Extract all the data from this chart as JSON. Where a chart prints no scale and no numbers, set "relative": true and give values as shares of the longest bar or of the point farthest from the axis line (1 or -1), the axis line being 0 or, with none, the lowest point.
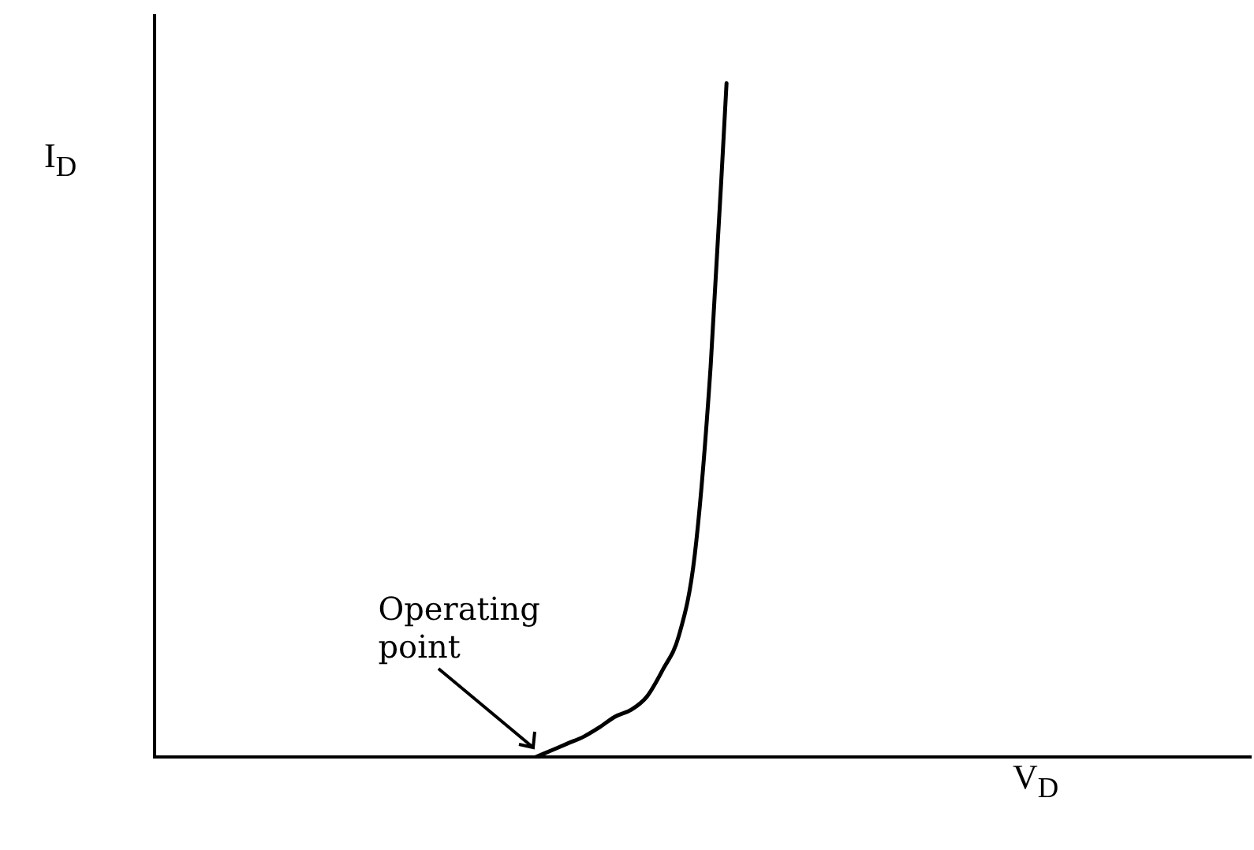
{
  "chart_data": {
    "type": "line",
    "relative": true,
    "xlabel": "V$_{D}$",
    "ylabel": "I$_{D}$",
    "categories": [
      null,
      null,
      null,
      null,
      null,
      null,
      null,
      null,
      null,
      null,
      null,
      null,
      null,
      null,
      null,
      null,
      null,
      null,
      null,
      null,
      null,
      null,
      null,
      null,
      null,
      null,
      null,
      null,
      null,
      null,
      null,
      null,
      null,
      null,
      null,
      null,
      null,
      null,
      null,
      null,
      null,
      null,
      null,
      null,
      null,
      null,
      null,
      null,
      null,
      null,
      null,
      null,
      null,
      null,
      null,
      null,
      null,
      null,
      null,
      null,
      null,
      null,
      null,
      null,
      null,
      null,
      null,
      null,
      null,
      null
    ],
    "series": [
      {
        "color": "#000000",
        "values": [
          null,
          null,
          null,
          null,
          null,
          null,
          null,
          null,
          null,
          null,
          null,
          null,
          null,
          null,
          null,
          null,
          null,
          null,
          null,
          null,
          null,
          null,
          null,
          null,
          0,
          0.01,
          0.02,
          0.03,
          0.044,
          0.06,
          0.07,
          0.09,
          0.13,
          0.18,
          0.3,
          0.58,
          1,
          null,
          null,
          null,
          null,
          null,
          null,
          null,
          null,
          null,
          null,
          null,
          null,
          null,
          null,
          null,
          null,
          null,
          null,
          null,
          null,
          null,
          null,
          null,
          null,
          null,
          null,
          null,
          null,
          null,
          null,
          null,
          null,
          null
        ]
      }
    ],
    "marker": "none",
    "grid": false,
    "legend": false,
    "annotations": [
      "Operating point"
    ]
  }
}
